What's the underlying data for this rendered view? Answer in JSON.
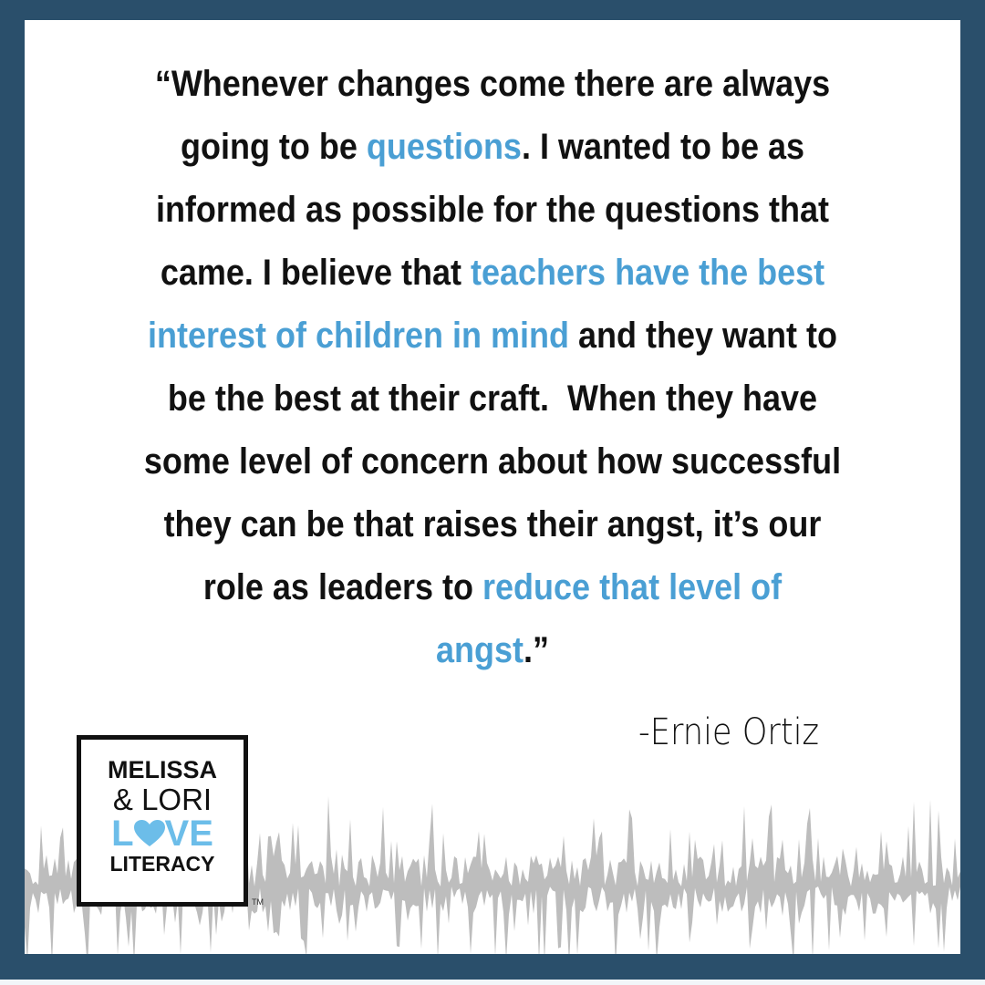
{
  "colors": {
    "frame": "#2a4f6b",
    "highlight": "#4a9fd4",
    "wave": "#bdbdbd",
    "logo_love": "#6cbde9"
  },
  "quote": {
    "lines": [
      [
        {
          "t": "“Whenever changes come there are always"
        }
      ],
      [
        {
          "t": "going to be "
        },
        {
          "t": "questions",
          "hl": true
        },
        {
          "t": ". I wanted to be as"
        }
      ],
      [
        {
          "t": "informed as possible for the questions that"
        }
      ],
      [
        {
          "t": "came. I believe that "
        },
        {
          "t": "teachers have the best",
          "hl": true
        }
      ],
      [
        {
          "t": "interest of children in mind",
          "hl": true
        },
        {
          "t": " and they want to"
        }
      ],
      [
        {
          "t": "be the best at their craft.  When they have"
        }
      ],
      [
        {
          "t": "some level of concern about how successful"
        }
      ],
      [
        {
          "t": "they can be that raises their angst, it’s our"
        }
      ],
      [
        {
          "t": "role as leaders to "
        },
        {
          "t": "reduce that level of",
          "hl": true
        }
      ],
      [
        {
          "t": "angst",
          "hl": true
        },
        {
          "t": ".”"
        }
      ]
    ]
  },
  "author": "-Ernie Ortiz",
  "logo": {
    "line1": "MELISSA",
    "line2": "& LORI",
    "line3_l": "L",
    "line3_rest": "VE",
    "line4": "LITERACY",
    "trademark": "TM",
    "heart_icon": "heart"
  }
}
